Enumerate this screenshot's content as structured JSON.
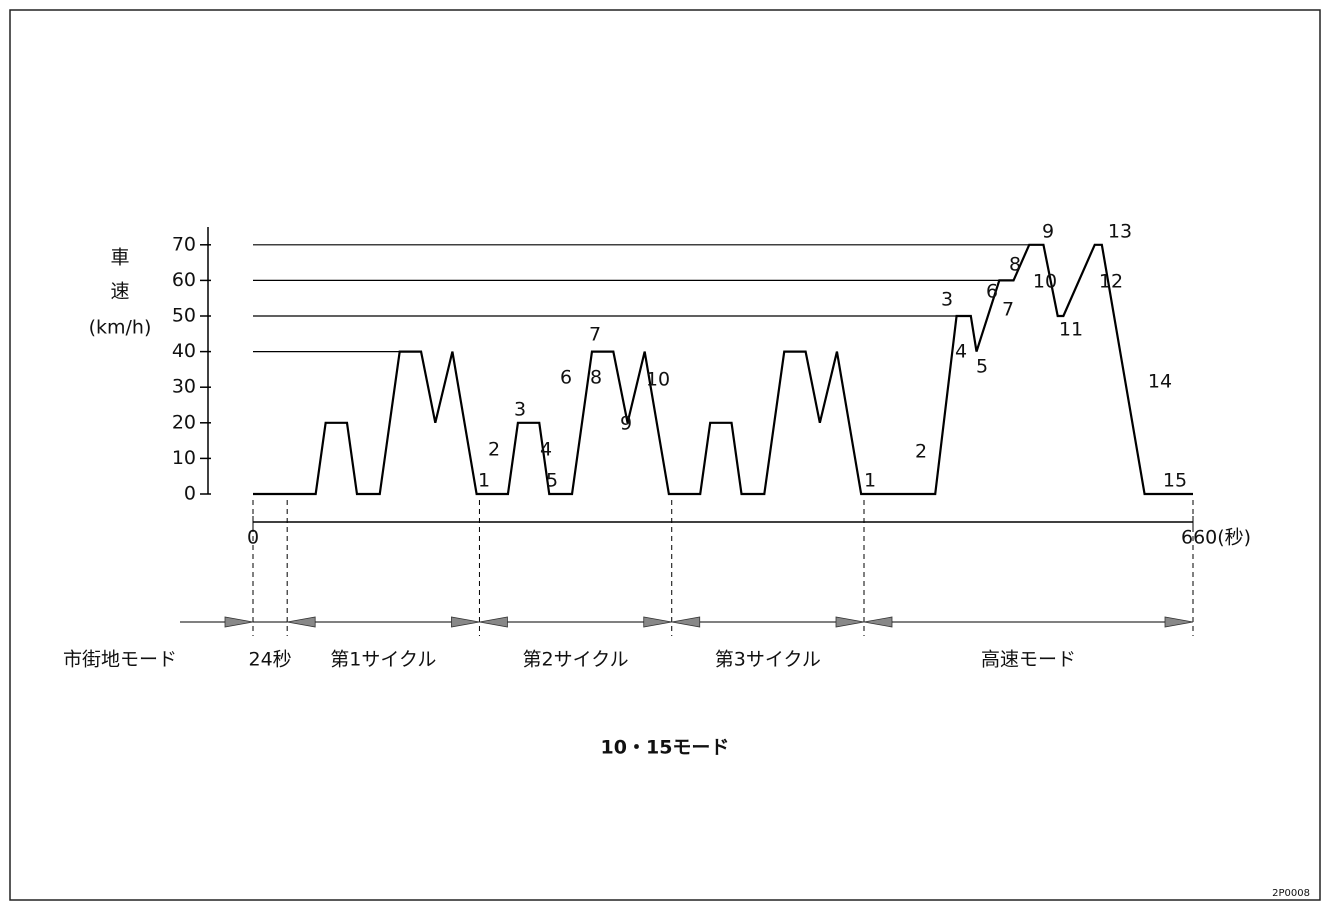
{
  "chart_data": {
    "type": "line",
    "y_label": [
      "車",
      "速",
      "(km/h)"
    ],
    "xlim": [
      0,
      660
    ],
    "ylim": [
      0,
      75
    ],
    "xticks": [
      0,
      {
        "value": 660,
        "label": "660(秒)"
      }
    ],
    "yticks": [
      0,
      10,
      20,
      30,
      40,
      50,
      60,
      70
    ],
    "color": "#000000",
    "x": [
      0,
      44,
      51,
      66,
      73,
      89,
      103,
      118,
      128,
      140,
      157,
      179,
      186,
      201,
      208,
      224,
      238,
      253,
      263,
      275,
      292,
      314,
      321,
      336,
      343,
      359,
      373,
      388,
      398,
      410,
      427,
      479,
      494,
      504,
      508,
      524,
      534,
      545,
      555,
      565,
      569,
      591,
      596,
      626,
      660
    ],
    "values": [
      0,
      0,
      20,
      20,
      0,
      0,
      40,
      40,
      20,
      40,
      0,
      0,
      20,
      20,
      0,
      0,
      40,
      40,
      20,
      40,
      0,
      0,
      20,
      20,
      0,
      0,
      40,
      40,
      20,
      40,
      0,
      0,
      50,
      50,
      40,
      60,
      60,
      70,
      70,
      50,
      50,
      70,
      70,
      0,
      0
    ],
    "reference_lines": [
      40,
      50,
      60,
      70
    ],
    "annotations": [
      "1",
      "2",
      "3",
      "4",
      "5",
      "6",
      "7",
      "8",
      "9",
      "10",
      "1",
      "2",
      "3",
      "4",
      "5",
      "6",
      "7",
      "8",
      "9",
      "10",
      "11",
      "12",
      "13",
      "14",
      "15"
    ],
    "phase_bounds": [
      0,
      24,
      159,
      294,
      429,
      660
    ],
    "phase_labels": [
      "24秒",
      "第1サイクル",
      "第2サイクル",
      "第3サイクル",
      "高速モード"
    ],
    "mode_label": "市街地モード",
    "caption": "10・15モード",
    "figure_id": "2P0008"
  }
}
